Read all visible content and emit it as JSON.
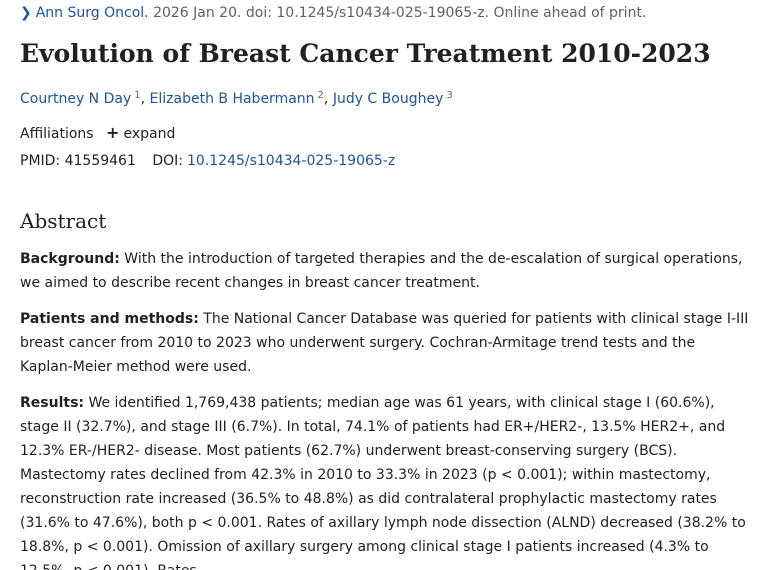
{
  "citation": {
    "journal": "Ann Surg Oncol.",
    "details": "2026 Jan 20. doi: 10.1245/s10434-025-19065-z. Online ahead of print."
  },
  "title": "Evolution of Breast Cancer Treatment 2010-2023",
  "authors": [
    {
      "name": "Courtney N Day",
      "sup": "1"
    },
    {
      "name": "Elizabeth B Habermann",
      "sup": "2"
    },
    {
      "name": "Judy C Boughey",
      "sup": "3"
    }
  ],
  "affiliations": {
    "label": "Affiliations",
    "expand": "expand"
  },
  "ids": {
    "pmid_label": "PMID:",
    "pmid": "41559461",
    "doi_label": "DOI:",
    "doi": "10.1245/s10434-025-19065-z"
  },
  "abstract": {
    "heading": "Abstract",
    "background_label": "Background:",
    "background_text": "With the introduction of targeted therapies and the de-escalation of surgical operations, we aimed to describe recent changes in breast cancer treatment.",
    "methods_label": "Patients and methods:",
    "methods_text": "The National Cancer Database was queried for patients with clinical stage I-III breast cancer from 2010 to 2023 who underwent surgery. Cochran-Armitage trend tests and the Kaplan-Meier method were used.",
    "results_label": "Results:",
    "results_text": "We identified 1,769,438 patients; median age was 61 years, with clinical stage I (60.6%), stage II (32.7%), and stage III (6.7%). In total, 74.1% of patients had ER+/HER2-, 13.5% HER2+, and 12.3% ER-/HER2- disease. Most patients (62.7%) underwent breast-conserving surgery (BCS). Mastectomy rates declined from 42.3% in 2010 to 33.3% in 2023 (p < 0.001); within mastectomy, reconstruction rate increased (36.5% to 48.8%) as did contralateral prophylactic mastectomy rates (31.6% to 47.6%), both p < 0.001. Rates of axillary lymph node dissection (ALND) decreased (38.2% to 18.8%, p < 0.001). Omission of axillary surgery among clinical stage I patients increased (4.3% to 12.5%, p < 0.001). Rates"
  }
}
